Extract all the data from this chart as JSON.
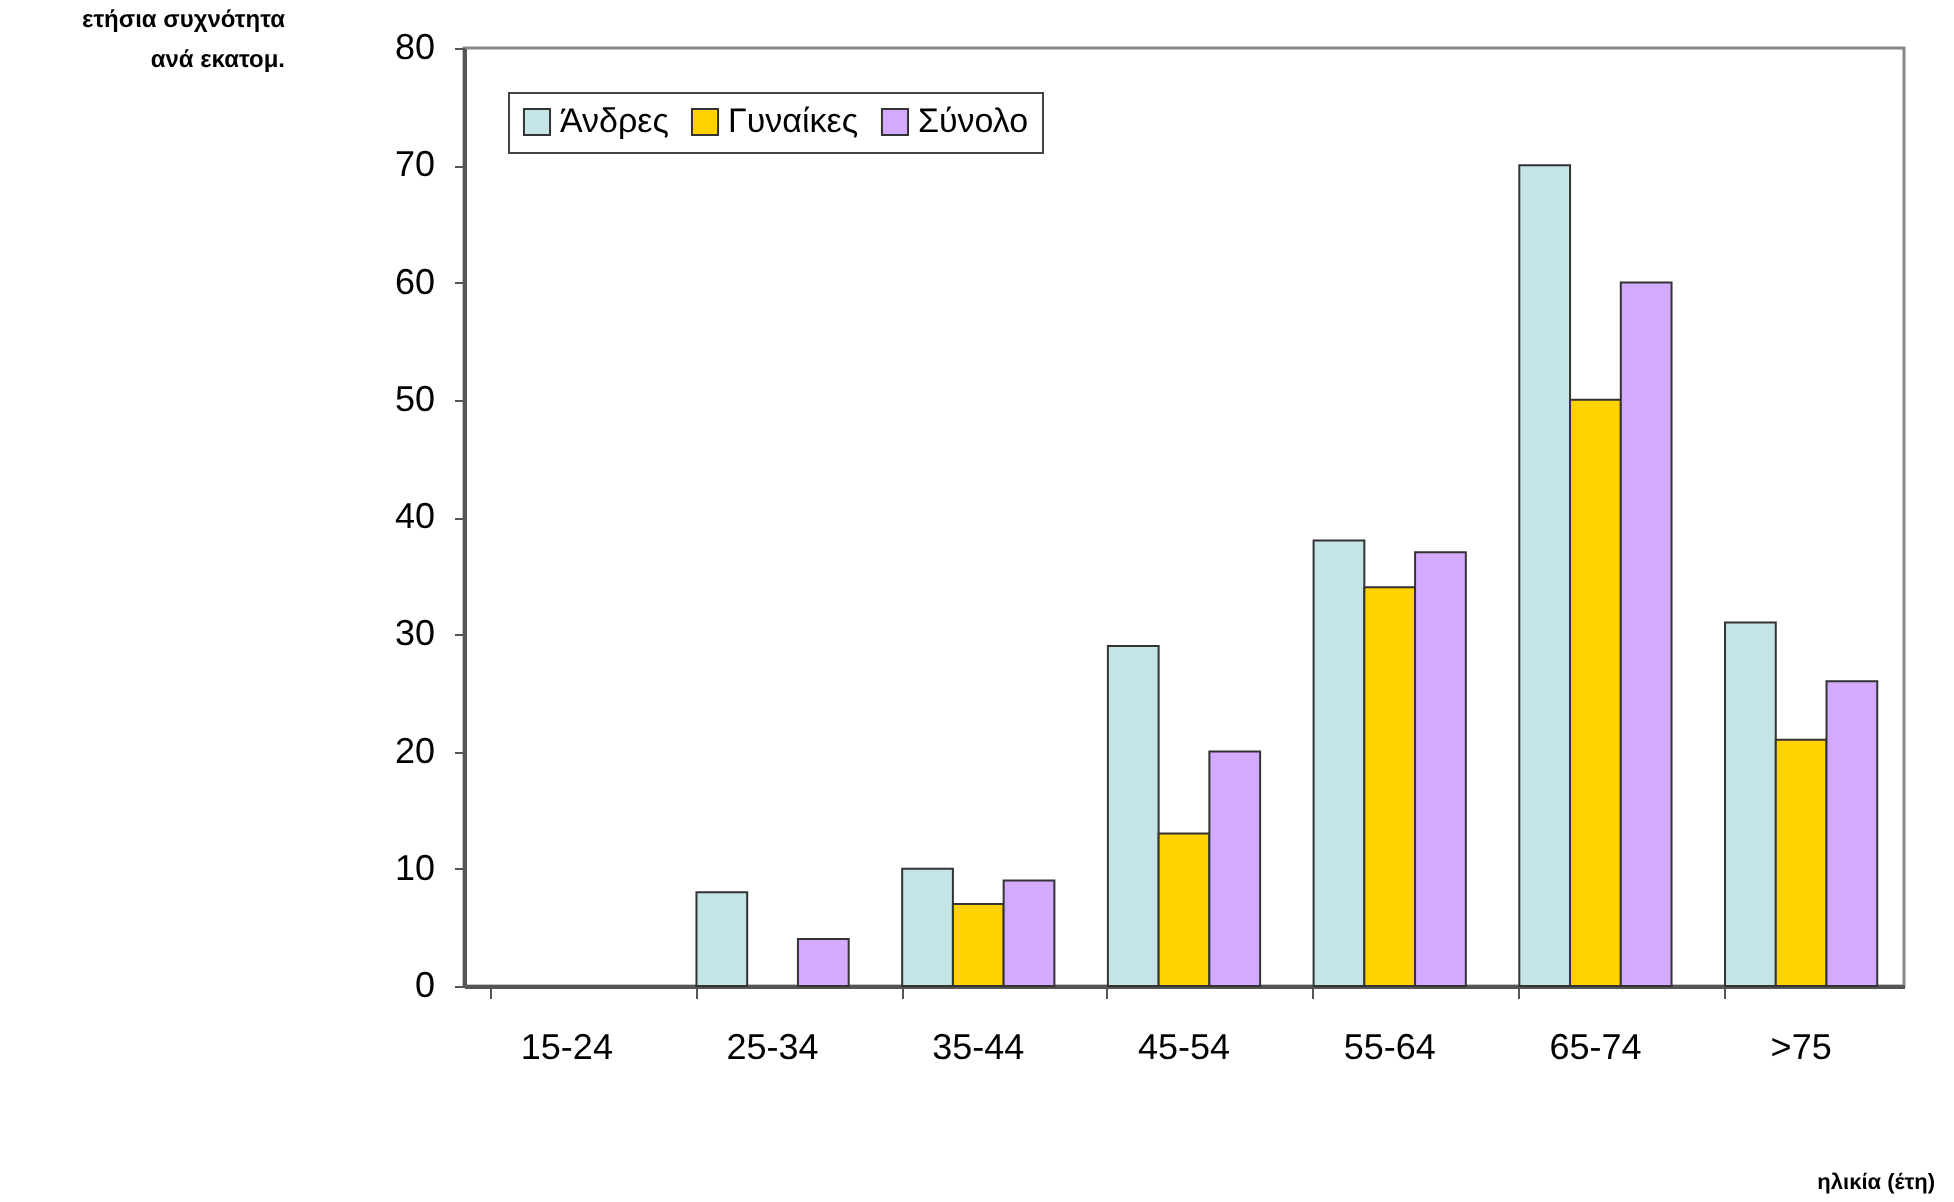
{
  "chart_data": {
    "type": "bar",
    "ylabel": "ετήσια συχνότητα\nανά εκατομ.",
    "xlabel": "ηλικία (έτη)",
    "categories": [
      "15-24",
      "25-34",
      "35-44",
      "45-54",
      "55-64",
      "65-74",
      ">75"
    ],
    "series": [
      {
        "name": "Άνδρες",
        "color": "#c4e4e6",
        "values": [
          null,
          8,
          10,
          29,
          38,
          70,
          31
        ]
      },
      {
        "name": "Γυναίκες",
        "color": "#ffd200",
        "values": [
          null,
          null,
          7,
          13,
          34,
          50,
          21
        ]
      },
      {
        "name": "Σύνολο",
        "color": "#d4aaff",
        "values": [
          null,
          4,
          9,
          20,
          37,
          60,
          26
        ]
      }
    ],
    "ylim": [
      0,
      80
    ],
    "yticks": [
      0,
      10,
      20,
      30,
      40,
      50,
      60,
      70,
      80
    ],
    "grid": false,
    "legend": "top left"
  }
}
